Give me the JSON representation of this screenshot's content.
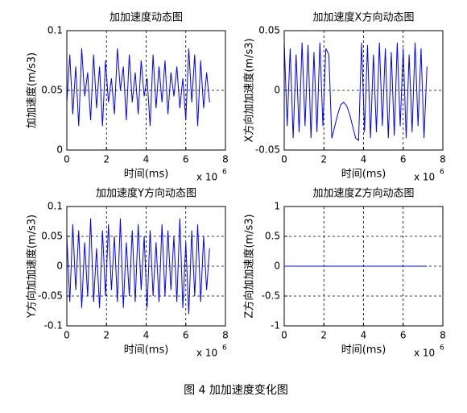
{
  "chart_data": [
    {
      "type": "line",
      "title": "加加速度动态图",
      "xlabel": "时间(ms)",
      "ylabel": "加加速度(m/s3)",
      "x_multiplier": "x 10",
      "x_exponent": "6",
      "x": [
        0,
        0.15,
        0.3,
        0.45,
        0.6,
        0.75,
        0.9,
        1.05,
        1.2,
        1.35,
        1.5,
        1.65,
        1.8,
        1.95,
        2.1,
        2.25,
        2.4,
        2.55,
        2.7,
        2.85,
        3,
        3.15,
        3.3,
        3.45,
        3.6,
        3.75,
        3.9,
        4.05,
        4.2,
        4.35,
        4.5,
        4.65,
        4.8,
        4.95,
        5.1,
        5.25,
        5.4,
        5.55,
        5.7,
        5.85,
        6,
        6.15,
        6.3,
        6.45,
        6.6,
        6.75,
        6.9,
        7.05,
        7.2
      ],
      "values": [
        0.04,
        0.08,
        0.03,
        0.07,
        0.02,
        0.085,
        0.045,
        0.065,
        0.025,
        0.08,
        0.035,
        0.07,
        0.02,
        0.075,
        0.04,
        0.06,
        0.03,
        0.085,
        0.05,
        0.07,
        0.025,
        0.08,
        0.04,
        0.065,
        0.03,
        0.075,
        0.045,
        0.06,
        0.02,
        0.08,
        0.035,
        0.07,
        0.04,
        0.075,
        0.03,
        0.065,
        0.045,
        0.07,
        0.035,
        0.06,
        0.025,
        0.085,
        0.04,
        0.08,
        0.02,
        0.075,
        0.035,
        0.065,
        0.04
      ],
      "color": "#0000ff",
      "xlim": [
        0,
        8
      ],
      "xticks": [
        0,
        2,
        4,
        6,
        8
      ],
      "ylim": [
        0,
        0.1
      ],
      "yticks": [
        0,
        0.05,
        0.1
      ],
      "grid": true
    },
    {
      "type": "line",
      "title": "加加速度X方向动态图",
      "xlabel": "时间(ms)",
      "ylabel": "X方向加加速度(m/s3)",
      "x_multiplier": "x 10",
      "x_exponent": "6",
      "x": [
        0,
        0.15,
        0.3,
        0.45,
        0.6,
        0.75,
        0.9,
        1.05,
        1.2,
        1.35,
        1.5,
        1.65,
        1.8,
        1.95,
        2.1,
        2.25,
        2.4,
        2.55,
        2.7,
        2.85,
        3,
        3.15,
        3.3,
        3.45,
        3.6,
        3.75,
        3.9,
        4.05,
        4.2,
        4.35,
        4.5,
        4.65,
        4.8,
        4.95,
        5.1,
        5.25,
        5.4,
        5.55,
        5.7,
        5.85,
        6,
        6.15,
        6.3,
        6.45,
        6.6,
        6.75,
        6.9,
        7.05,
        7.2
      ],
      "values": [
        0.04,
        -0.03,
        0.035,
        -0.04,
        0.03,
        -0.035,
        0.04,
        -0.03,
        0.038,
        -0.04,
        0.032,
        -0.035,
        0.04,
        -0.03,
        0.035,
        0.03,
        -0.04,
        -0.03,
        -0.02,
        -0.012,
        -0.01,
        -0.013,
        -0.02,
        -0.03,
        -0.04,
        -0.042,
        0.04,
        -0.035,
        0.038,
        -0.04,
        0.03,
        -0.035,
        0.04,
        -0.03,
        0.035,
        -0.04,
        0.032,
        -0.038,
        0.04,
        -0.03,
        0.035,
        -0.04,
        0.03,
        -0.035,
        0.04,
        -0.03,
        0.035,
        -0.04,
        0.02
      ],
      "color": "#0000ff",
      "xlim": [
        0,
        8
      ],
      "xticks": [
        0,
        2,
        4,
        6,
        8
      ],
      "ylim": [
        -0.05,
        0.05
      ],
      "yticks": [
        -0.05,
        0,
        0.05
      ],
      "grid": true
    },
    {
      "type": "line",
      "title": "加加速度Y方向动态图",
      "xlabel": "时间(ms)",
      "ylabel": "Y方向加加速度(m/s3)",
      "x_multiplier": "x 10",
      "x_exponent": "6",
      "x": [
        0,
        0.15,
        0.3,
        0.45,
        0.6,
        0.75,
        0.9,
        1.05,
        1.2,
        1.35,
        1.5,
        1.65,
        1.8,
        1.95,
        2.1,
        2.25,
        2.4,
        2.55,
        2.7,
        2.85,
        3,
        3.15,
        3.3,
        3.45,
        3.6,
        3.75,
        3.9,
        4.05,
        4.2,
        4.35,
        4.5,
        4.65,
        4.8,
        4.95,
        5.1,
        5.25,
        5.4,
        5.55,
        5.7,
        5.85,
        6,
        6.15,
        6.3,
        6.45,
        6.6,
        6.75,
        6.9,
        7.05,
        7.2
      ],
      "values": [
        0.05,
        -0.06,
        0.07,
        -0.04,
        0.06,
        -0.07,
        0.04,
        -0.05,
        0.08,
        -0.06,
        0.03,
        -0.07,
        0.06,
        -0.05,
        0.07,
        -0.04,
        0.05,
        -0.06,
        0.08,
        -0.07,
        0.04,
        -0.05,
        0.06,
        -0.06,
        0.07,
        -0.04,
        0.05,
        -0.07,
        0.06,
        -0.05,
        0.04,
        -0.06,
        0.07,
        -0.05,
        0.06,
        -0.04,
        0.05,
        -0.06,
        0.08,
        -0.07,
        0.04,
        -0.08,
        0.06,
        -0.05,
        0.07,
        -0.06,
        0.05,
        -0.04,
        0.03
      ],
      "color": "#0000ff",
      "xlim": [
        0,
        8
      ],
      "xticks": [
        0,
        2,
        4,
        6,
        8
      ],
      "ylim": [
        -0.1,
        0.1
      ],
      "yticks": [
        -0.1,
        -0.05,
        0,
        0.05,
        0.1
      ],
      "grid": true
    },
    {
      "type": "line",
      "title": "加加速度Z方向动态图",
      "xlabel": "时间(ms)",
      "ylabel": "Z方向加加速度(m/s3)",
      "x_multiplier": "x 10",
      "x_exponent": "6",
      "x": [
        0,
        7.2
      ],
      "values": [
        0,
        0
      ],
      "color": "#0000ff",
      "xlim": [
        0,
        8
      ],
      "xticks": [
        0,
        2,
        4,
        6,
        8
      ],
      "ylim": [
        -1,
        1
      ],
      "yticks": [
        -1,
        -0.5,
        0,
        0.5,
        1
      ],
      "grid": true
    }
  ],
  "caption": "图 4 加加速度变化图"
}
